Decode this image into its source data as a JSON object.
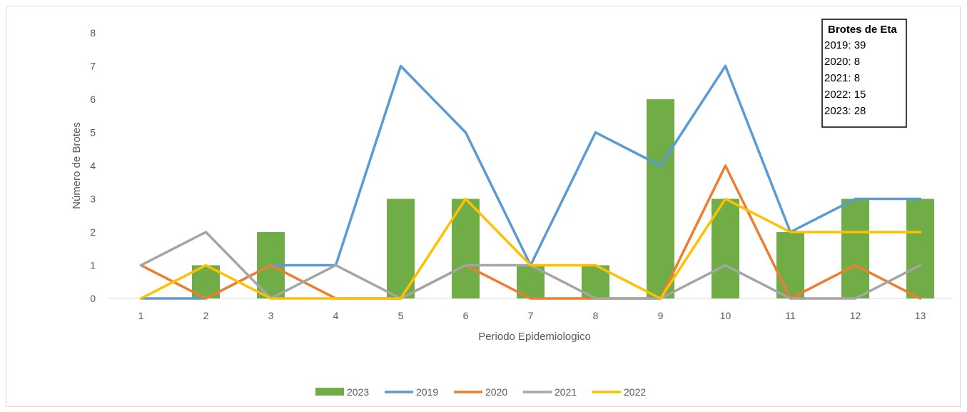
{
  "chart_data": {
    "type": "bar",
    "categories": [
      "1",
      "2",
      "3",
      "4",
      "5",
      "6",
      "7",
      "8",
      "9",
      "10",
      "11",
      "12",
      "13"
    ],
    "xlabel": "Periodo Epidemiologico",
    "ylabel": "Número de Brotes",
    "ylim": [
      0,
      8
    ],
    "yticks": [
      "0",
      "1",
      "2",
      "3",
      "4",
      "5",
      "6",
      "7",
      "8"
    ],
    "grid": false,
    "legend_position": "bottom",
    "bar_series": {
      "name": "2023",
      "color": "#70ad47",
      "values": [
        0,
        1,
        2,
        0,
        3,
        3,
        1,
        1,
        6,
        3,
        2,
        3,
        3
      ]
    },
    "line_series": [
      {
        "name": "2019",
        "color": "#5b9bd5",
        "values": [
          0,
          0,
          1,
          1,
          7,
          5,
          1,
          5,
          4,
          7,
          2,
          3,
          3
        ]
      },
      {
        "name": "2020",
        "color": "#ed7d31",
        "values": [
          1,
          0,
          1,
          0,
          0,
          1,
          0,
          0,
          0,
          4,
          0,
          1,
          0
        ]
      },
      {
        "name": "2021",
        "color": "#a5a5a5",
        "values": [
          1,
          2,
          0,
          1,
          0,
          1,
          1,
          0,
          0,
          1,
          0,
          0,
          1
        ]
      },
      {
        "name": "2022",
        "color": "#ffc000",
        "values": [
          0,
          1,
          0,
          0,
          0,
          3,
          1,
          1,
          0,
          3,
          2,
          2,
          2
        ]
      }
    ],
    "annotation": {
      "title": "Brotes de Eta",
      "lines": [
        "2019: 39",
        "2020: 8",
        "2021: 8",
        "2022: 15",
        "2023: 28"
      ]
    }
  }
}
